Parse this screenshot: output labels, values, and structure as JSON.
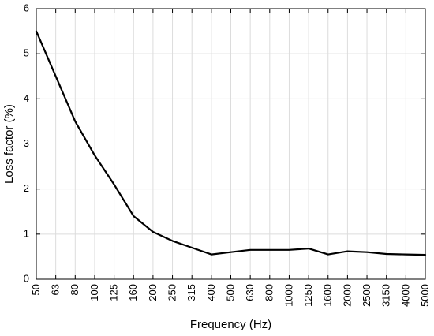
{
  "chart_data": {
    "type": "line",
    "xlabel": "Frequency (Hz)",
    "ylabel": "Loss factor (%)",
    "x_scale": "categorical",
    "categories": [
      "50",
      "63",
      "80",
      "100",
      "125",
      "160",
      "200",
      "250",
      "315",
      "400",
      "500",
      "630",
      "800",
      "1000",
      "1250",
      "1600",
      "2000",
      "2500",
      "3150",
      "4000",
      "5000"
    ],
    "ylim": [
      0,
      6
    ],
    "yticks": [
      "0",
      "1",
      "2",
      "3",
      "4",
      "5",
      "6"
    ],
    "grid": true,
    "legend": "none",
    "series": [
      {
        "values": [
          5.5,
          4.5,
          3.5,
          2.75,
          2.1,
          1.4,
          1.05,
          0.85,
          0.7,
          0.55,
          0.6,
          0.65,
          0.65,
          0.65,
          0.68,
          0.55,
          0.62,
          0.6,
          0.56,
          0.55,
          0.54
        ],
        "color": "#000000"
      }
    ]
  }
}
